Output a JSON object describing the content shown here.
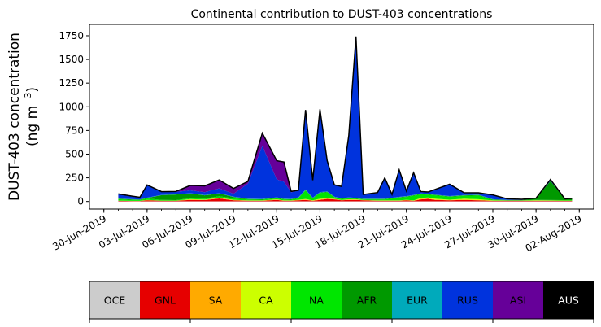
{
  "chart_data": {
    "type": "area",
    "stacked": true,
    "title": "Continental contribution to DUST-403 concentrations",
    "ylabel_line1": "DUST-403 concentration",
    "ylabel_line2": "(ng m",
    "ylabel_exp": "−3",
    "ylabel_close": ")",
    "ylim": [
      -80,
      1870
    ],
    "yticks": [
      0,
      250,
      500,
      750,
      1000,
      1250,
      1500,
      1750
    ],
    "ytick_labels": [
      "0",
      "250",
      "500",
      "750",
      "1000",
      "1250",
      "1500",
      "1750"
    ],
    "xlim": [
      "2019-06-29",
      "2019-08-03"
    ],
    "xticks": [
      "2019-06-30",
      "2019-07-03",
      "2019-07-06",
      "2019-07-09",
      "2019-07-12",
      "2019-07-15",
      "2019-07-18",
      "2019-07-21",
      "2019-07-24",
      "2019-07-27",
      "2019-07-30",
      "2019-08-02"
    ],
    "xtick_labels": [
      "30-Jun-2019",
      "03-Jul-2019",
      "06-Jul-2019",
      "09-Jul-2019",
      "12-Jul-2019",
      "15-Jul-2019",
      "18-Jul-2019",
      "21-Jul-2019",
      "24-Jul-2019",
      "27-Jul-2019",
      "30-Jul-2019",
      "02-Aug-2019"
    ],
    "x": [
      "2019-07-01",
      "2019-07-02",
      "2019-07-02T12:00",
      "2019-07-03",
      "2019-07-04",
      "2019-07-05",
      "2019-07-06",
      "2019-07-07",
      "2019-07-08",
      "2019-07-09",
      "2019-07-10",
      "2019-07-11",
      "2019-07-12",
      "2019-07-12T12:00",
      "2019-07-13",
      "2019-07-13T12:00",
      "2019-07-14",
      "2019-07-14T12:00",
      "2019-07-15",
      "2019-07-15T12:00",
      "2019-07-16",
      "2019-07-16T12:00",
      "2019-07-17",
      "2019-07-17T12:00",
      "2019-07-18",
      "2019-07-19",
      "2019-07-19T12:00",
      "2019-07-20",
      "2019-07-20T12:00",
      "2019-07-21",
      "2019-07-21T12:00",
      "2019-07-22",
      "2019-07-22T12:00",
      "2019-07-23",
      "2019-07-24",
      "2019-07-25",
      "2019-07-26",
      "2019-07-27",
      "2019-07-28",
      "2019-07-29",
      "2019-07-30",
      "2019-07-31",
      "2019-08-01",
      "2019-08-01T12:00"
    ],
    "series": [
      {
        "name": "OCE",
        "color": "#cccccc",
        "values": [
          2,
          2,
          2,
          2,
          2,
          2,
          2,
          2,
          2,
          2,
          2,
          2,
          2,
          2,
          2,
          2,
          2,
          2,
          2,
          2,
          2,
          2,
          2,
          2,
          2,
          2,
          2,
          2,
          2,
          2,
          2,
          2,
          2,
          2,
          2,
          2,
          2,
          2,
          2,
          2,
          2,
          2,
          2,
          2
        ]
      },
      {
        "name": "GNL",
        "color": "#e60000",
        "values": [
          5,
          3,
          3,
          10,
          5,
          5,
          15,
          12,
          30,
          10,
          5,
          5,
          15,
          5,
          5,
          10,
          15,
          5,
          15,
          25,
          20,
          10,
          15,
          15,
          10,
          5,
          5,
          5,
          5,
          10,
          5,
          20,
          25,
          15,
          10,
          15,
          10,
          5,
          5,
          5,
          5,
          5,
          5,
          5
        ]
      },
      {
        "name": "SA",
        "color": "#ffaa00",
        "values": [
          1,
          1,
          1,
          2,
          1,
          1,
          3,
          3,
          5,
          3,
          2,
          2,
          3,
          2,
          2,
          3,
          4,
          2,
          4,
          3,
          3,
          2,
          3,
          3,
          2,
          2,
          2,
          2,
          2,
          3,
          2,
          5,
          5,
          3,
          2,
          3,
          2,
          1,
          1,
          1,
          2,
          2,
          1,
          1
        ]
      },
      {
        "name": "CA",
        "color": "#ccff00",
        "values": [
          1,
          1,
          1,
          3,
          1,
          1,
          5,
          3,
          3,
          3,
          2,
          2,
          3,
          2,
          2,
          3,
          5,
          3,
          8,
          3,
          3,
          2,
          3,
          3,
          2,
          2,
          2,
          2,
          2,
          3,
          2,
          10,
          10,
          10,
          5,
          10,
          10,
          3,
          1,
          1,
          3,
          2,
          1,
          1
        ]
      },
      {
        "name": "NA",
        "color": "#00e600",
        "values": [
          15,
          10,
          8,
          15,
          8,
          5,
          10,
          10,
          15,
          15,
          10,
          8,
          10,
          10,
          8,
          15,
          90,
          20,
          60,
          65,
          15,
          10,
          10,
          5,
          5,
          10,
          10,
          20,
          30,
          30,
          50,
          40,
          30,
          35,
          30,
          30,
          40,
          5,
          2,
          2,
          5,
          5,
          5,
          5
        ]
      },
      {
        "name": "AFR",
        "color": "#009900",
        "values": [
          5,
          5,
          5,
          5,
          50,
          60,
          50,
          35,
          30,
          15,
          5,
          5,
          5,
          5,
          5,
          5,
          5,
          5,
          5,
          5,
          5,
          5,
          5,
          5,
          5,
          5,
          5,
          5,
          5,
          5,
          5,
          5,
          5,
          5,
          5,
          5,
          5,
          5,
          5,
          5,
          15,
          200,
          10,
          15
        ]
      },
      {
        "name": "EUR",
        "color": "#00aabb",
        "values": [
          3,
          2,
          2,
          3,
          2,
          2,
          3,
          3,
          3,
          3,
          3,
          3,
          5,
          3,
          3,
          5,
          5,
          3,
          5,
          3,
          3,
          3,
          5,
          5,
          3,
          3,
          3,
          3,
          3,
          3,
          3,
          3,
          3,
          3,
          3,
          3,
          3,
          3,
          1,
          1,
          1,
          1,
          1,
          1
        ]
      },
      {
        "name": "RUS",
        "color": "#0033dd",
        "values": [
          43,
          26,
          18,
          130,
          30,
          25,
          30,
          30,
          50,
          30,
          160,
          560,
          190,
          180,
          70,
          70,
          835,
          180,
          870,
          320,
          120,
          120,
          650,
          1700,
          40,
          60,
          215,
          30,
          280,
          50,
          230,
          15,
          15,
          50,
          120,
          20,
          15,
          40,
          10,
          5,
          1,
          15,
          2,
          2
        ]
      },
      {
        "name": "ASI",
        "color": "#660099",
        "values": [
          5,
          5,
          5,
          5,
          5,
          5,
          52,
          67,
          90,
          57,
          23,
          135,
          197,
          208,
          10,
          5,
          5,
          5,
          5,
          5,
          5,
          5,
          5,
          5,
          5,
          5,
          5,
          5,
          5,
          5,
          5,
          5,
          5,
          5,
          5,
          5,
          5,
          5,
          1,
          1,
          1,
          1,
          1,
          1
        ]
      },
      {
        "name": "AUS",
        "color": "#000000",
        "values": [
          0,
          0,
          0,
          0,
          0,
          0,
          0,
          0,
          0,
          0,
          0,
          0,
          0,
          0,
          0,
          0,
          0,
          0,
          0,
          0,
          0,
          0,
          0,
          0,
          0,
          0,
          0,
          0,
          0,
          0,
          0,
          0,
          0,
          0,
          0,
          0,
          0,
          0,
          0,
          0,
          0,
          0,
          0,
          0
        ]
      }
    ],
    "legend_placement": "bottom",
    "legend_text_colors": [
      "#000000",
      "#000000",
      "#000000",
      "#000000",
      "#000000",
      "#000000",
      "#000000",
      "#000000",
      "#000000",
      "#ffffff"
    ],
    "grid": false
  }
}
